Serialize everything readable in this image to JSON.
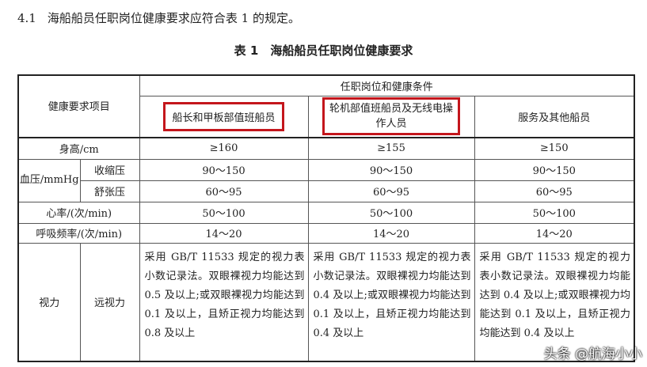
{
  "intro": {
    "number": "4.1",
    "text": "海船船员任职岗位健康要求应符合表 1 的规定。"
  },
  "table_title": "表 1　海船船员任职岗位健康要求",
  "header": {
    "item": "健康要求项目",
    "group": "任职岗位和健康条件",
    "columns": [
      "船长和甲板部值班船员",
      "轮机部值班船员及无线电操作人员",
      "服务及其他船员"
    ],
    "highlighted_columns": [
      0,
      1
    ],
    "highlight_color": "#c4161c"
  },
  "rows": {
    "height": {
      "label": "身高/cm",
      "values": [
        "≥160",
        "≥155",
        "≥150"
      ]
    },
    "bp": {
      "label": "血压/mmHg",
      "systolic": {
        "label": "收缩压",
        "values": [
          "90～150",
          "90～150",
          "90～150"
        ]
      },
      "diastolic": {
        "label": "舒张压",
        "values": [
          "60～95",
          "60～95",
          "60～95"
        ]
      }
    },
    "heart": {
      "label": "心率/(次/min)",
      "values": [
        "50～100",
        "50～100",
        "50～100"
      ]
    },
    "resp": {
      "label": "呼吸频率/(次/min)",
      "values": [
        "14～20",
        "14～20",
        "14～20"
      ]
    },
    "vision": {
      "label": "视力",
      "sub": "远视力",
      "values": [
        "采用 GB/T 11533 规定的视力表小数记录法。双眼裸视力均能达到 0.5 及以上;或双眼裸视力均能达到 0.1 及以上，且矫正视力均能达到 0.8 及以上",
        "采用 GB/T 11533 规定的视力表小数记录法。双眼裸视力均能达到 0.4 及以上;或双眼裸视力均能达到 0.1 及以上，且矫正视力均能达到 0.4 及以上",
        "采用 GB/T 11533 规定的视力表小数记录法。双眼裸视力均能达到 0.4 及以上;或双眼裸视力均能达到 0.1 及以上，且矫正视力均能达到 0.4 及以上"
      ]
    }
  },
  "watermark": "头条 @航海小小"
}
